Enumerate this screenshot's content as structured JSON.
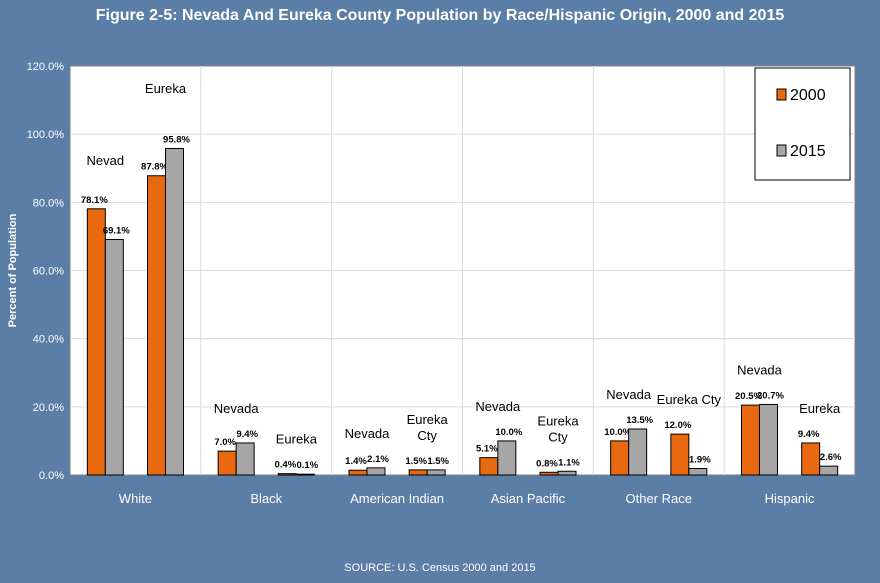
{
  "title": "Figure 2-5: Nevada And Eureka County Population by Race/Hispanic Origin, 2000 and 2015",
  "source": "SOURCE: U.S. Census 2000 and 2015",
  "colors": {
    "background": "#5b7ea6",
    "plot_bg": "#ffffff",
    "series_2000": "#e8690f",
    "series_2015": "#a6a6a6"
  },
  "chart_data": {
    "type": "bar",
    "title": "Figure 2-5: Nevada And Eureka County Population by Race/Hispanic Origin, 2000 and 2015",
    "ylabel": "Percent of Population",
    "ylim": [
      0,
      120
    ],
    "yticks": [
      "0.0%",
      "20.0%",
      "40.0%",
      "60.0%",
      "80.0%",
      "100.0%",
      "120.0%"
    ],
    "grid": true,
    "legend_position": "top-right",
    "legend": [
      "2000",
      "2015"
    ],
    "groups": [
      {
        "name": "White",
        "pairs": [
          {
            "label": "Nevad",
            "values": [
              78.1,
              69.1
            ],
            "value_labels": [
              "78.1%",
              "69.1%"
            ]
          },
          {
            "label": "Eureka",
            "values": [
              87.8,
              95.8
            ],
            "value_labels": [
              "87.8%",
              "95.8%"
            ]
          }
        ]
      },
      {
        "name": "Black",
        "pairs": [
          {
            "label": "Nevada",
            "values": [
              7.0,
              9.4
            ],
            "value_labels": [
              "7.0%",
              "9.4%"
            ]
          },
          {
            "label": "Eureka",
            "values": [
              0.4,
              0.1
            ],
            "value_labels": [
              "0.4%",
              "0.1%"
            ]
          }
        ]
      },
      {
        "name": "American Indian",
        "pairs": [
          {
            "label": "Nevada",
            "values": [
              1.4,
              2.1
            ],
            "value_labels": [
              "1.4%",
              "2.1%"
            ]
          },
          {
            "label": "Eureka Cty",
            "values": [
              1.5,
              1.5
            ],
            "value_labels": [
              "1.5%",
              "1.5%"
            ]
          }
        ]
      },
      {
        "name": "Asian Pacific",
        "pairs": [
          {
            "label": "Nevada",
            "values": [
              5.1,
              10.0
            ],
            "value_labels": [
              "5.1%",
              "10.0%"
            ]
          },
          {
            "label": "Eureka Cty",
            "values": [
              0.8,
              1.1
            ],
            "value_labels": [
              "0.8%",
              "1.1%"
            ]
          }
        ]
      },
      {
        "name": "Other Race",
        "pairs": [
          {
            "label": "Nevada",
            "values": [
              10.0,
              13.5
            ],
            "value_labels": [
              "10.0%",
              "13.5%"
            ]
          },
          {
            "label": "Eureka Cty",
            "values": [
              12.0,
              1.9
            ],
            "value_labels": [
              "12.0%",
              "1.9%"
            ]
          }
        ]
      },
      {
        "name": "Hispanic",
        "pairs": [
          {
            "label": "Nevada",
            "values": [
              20.5,
              20.7
            ],
            "value_labels": [
              "20.5%",
              "20.7%"
            ]
          },
          {
            "label": "Eureka",
            "values": [
              9.4,
              2.6
            ],
            "value_labels": [
              "9.4%",
              "2.6%"
            ]
          }
        ]
      }
    ]
  }
}
